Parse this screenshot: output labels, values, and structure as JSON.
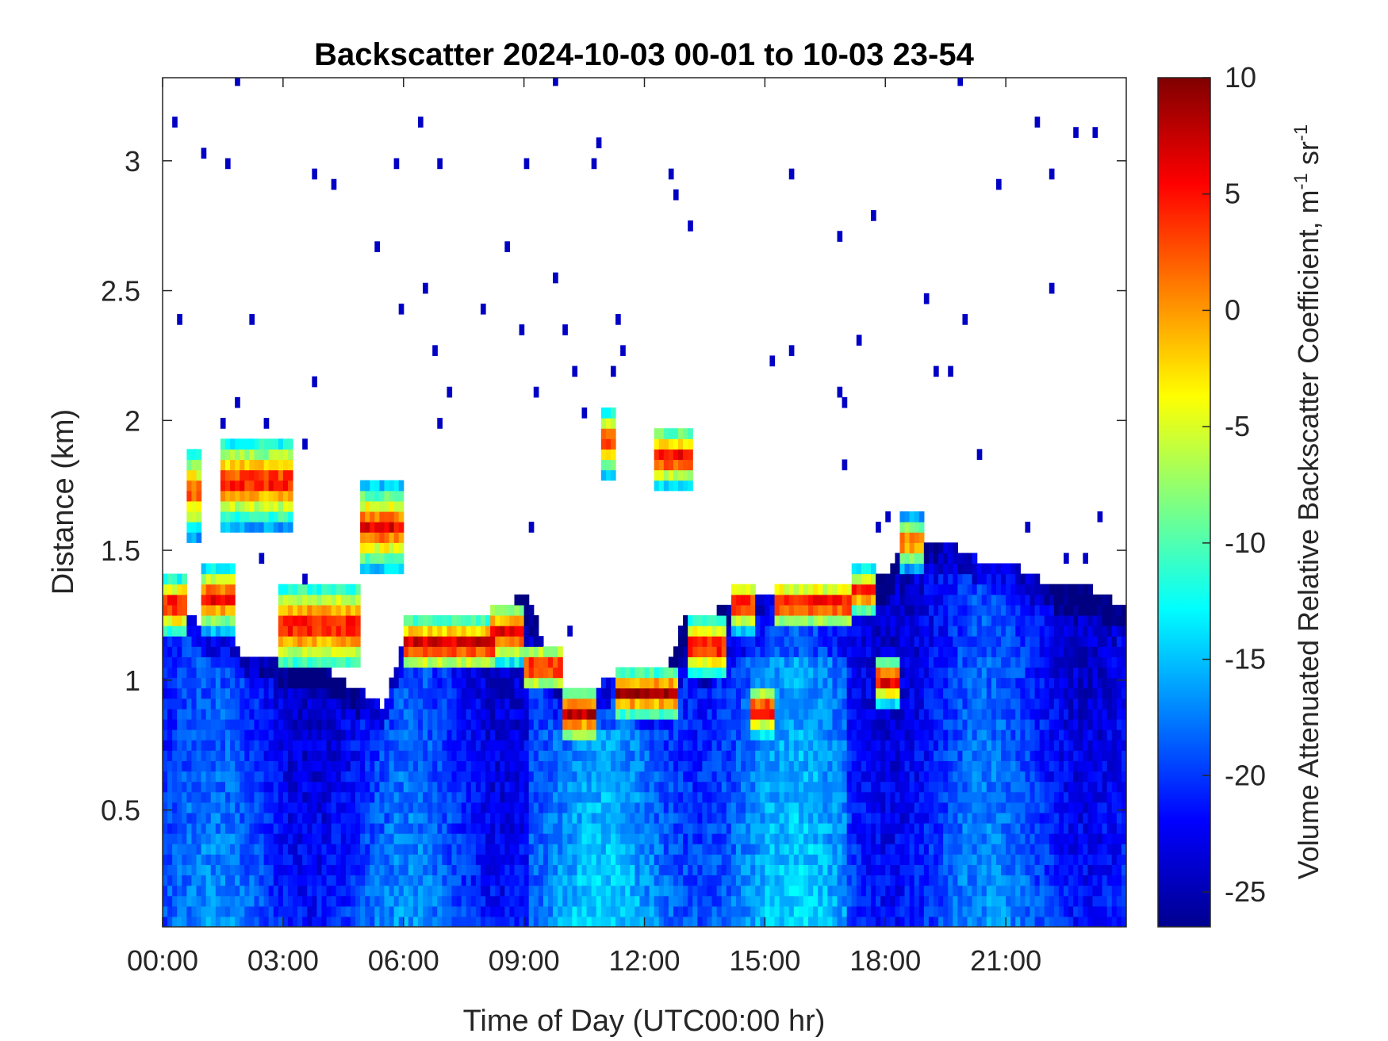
{
  "chart_data": {
    "type": "heatmap",
    "title": "Backscatter 2024-10-03 00-01 to 10-03 23-54",
    "xlabel": "Time of Day (UTC00:00 hr)",
    "ylabel": "Distance (km)",
    "xlim": [
      0,
      24
    ],
    "ylim": [
      0.05,
      3.32
    ],
    "x_ticks": [
      0,
      3,
      6,
      9,
      12,
      15,
      18,
      21
    ],
    "x_tick_labels": [
      "00:00",
      "03:00",
      "06:00",
      "09:00",
      "12:00",
      "15:00",
      "18:00",
      "21:00"
    ],
    "y_ticks": [
      0.5,
      1,
      1.5,
      2,
      2.5,
      3
    ],
    "y_tick_labels": [
      "0.5",
      "1",
      "1.5",
      "2",
      "2.5",
      "3"
    ],
    "colorbar": {
      "label": "Volume Attenuated Relative Backscatter Coefficient, m",
      "label_sup1": "-1",
      "label_mid": " sr",
      "label_sup2": "-1",
      "colormap": "jet",
      "clim": [
        -26.5,
        10
      ],
      "ticks": [
        10,
        5,
        0,
        -5,
        -10,
        -15,
        -20,
        -25
      ],
      "tick_labels": [
        "10",
        "5",
        "0",
        "-5",
        "-10",
        "-15",
        "-20",
        "-25"
      ]
    },
    "layer_top_km": [
      [
        0,
        1.28
      ],
      [
        0.5,
        1.3
      ],
      [
        1,
        1.2
      ],
      [
        1.5,
        1.2
      ],
      [
        2,
        1.1
      ],
      [
        2.5,
        1.1
      ],
      [
        3,
        1.08
      ],
      [
        3.5,
        1.08
      ],
      [
        4,
        1.06
      ],
      [
        4.5,
        1.0
      ],
      [
        5,
        0.95
      ],
      [
        5.5,
        0.9
      ],
      [
        6,
        1.15
      ],
      [
        6.5,
        1.2
      ],
      [
        7,
        1.22
      ],
      [
        7.5,
        1.22
      ],
      [
        8,
        1.25
      ],
      [
        8.5,
        1.28
      ],
      [
        9,
        1.35
      ],
      [
        9.5,
        1.15
      ],
      [
        10,
        0.95
      ],
      [
        10.5,
        0.95
      ],
      [
        11,
        1.0
      ],
      [
        11.5,
        1.05
      ],
      [
        12,
        1.0
      ],
      [
        12.5,
        1.0
      ],
      [
        13,
        1.25
      ],
      [
        13.5,
        1.2
      ],
      [
        14,
        1.3
      ],
      [
        14.5,
        1.35
      ],
      [
        15,
        1.35
      ],
      [
        15.5,
        1.35
      ],
      [
        16,
        1.35
      ],
      [
        16.5,
        1.35
      ],
      [
        17,
        1.35
      ],
      [
        17.5,
        1.4
      ],
      [
        18,
        1.4
      ],
      [
        18.5,
        1.58
      ],
      [
        19,
        1.55
      ],
      [
        19.5,
        1.52
      ],
      [
        20,
        1.5
      ],
      [
        20.5,
        1.45
      ],
      [
        21,
        1.45
      ],
      [
        21.5,
        1.42
      ],
      [
        22,
        1.38
      ],
      [
        22.5,
        1.36
      ],
      [
        23,
        1.36
      ],
      [
        23.5,
        1.32
      ],
      [
        24,
        1.28
      ]
    ],
    "cloud_layers": [
      {
        "t_start": 0.0,
        "t_end": 0.6,
        "base_km": 1.24,
        "top_km": 1.34,
        "peak_value": 8
      },
      {
        "t_start": 0.6,
        "t_end": 1.0,
        "base_km": 1.6,
        "top_km": 1.85,
        "peak_value": 4
      },
      {
        "t_start": 1.0,
        "t_end": 1.8,
        "base_km": 1.25,
        "top_km": 1.38,
        "peak_value": 7
      },
      {
        "t_start": 1.5,
        "t_end": 3.2,
        "base_km": 1.65,
        "top_km": 1.88,
        "peak_value": 6
      },
      {
        "t_start": 2.9,
        "t_end": 4.9,
        "base_km": 1.1,
        "top_km": 1.32,
        "peak_value": 7
      },
      {
        "t_start": 4.9,
        "t_end": 6.0,
        "base_km": 1.48,
        "top_km": 1.7,
        "peak_value": 6
      },
      {
        "t_start": 6.0,
        "t_end": 8.3,
        "base_km": 1.1,
        "top_km": 1.18,
        "peak_value": 9
      },
      {
        "t_start": 8.2,
        "t_end": 9.0,
        "base_km": 1.12,
        "top_km": 1.25,
        "peak_value": 7
      },
      {
        "t_start": 9.0,
        "t_end": 10.0,
        "base_km": 1.02,
        "top_km": 1.08,
        "peak_value": 8
      },
      {
        "t_start": 10.0,
        "t_end": 10.8,
        "base_km": 0.82,
        "top_km": 0.92,
        "peak_value": 8
      },
      {
        "t_start": 10.9,
        "t_end": 11.3,
        "base_km": 1.85,
        "top_km": 2.0,
        "peak_value": 6
      },
      {
        "t_start": 11.3,
        "t_end": 12.8,
        "base_km": 0.92,
        "top_km": 0.98,
        "peak_value": 9
      },
      {
        "t_start": 12.2,
        "t_end": 13.2,
        "base_km": 1.8,
        "top_km": 1.92,
        "peak_value": 7
      },
      {
        "t_start": 13.1,
        "t_end": 14.0,
        "base_km": 1.08,
        "top_km": 1.18,
        "peak_value": 8
      },
      {
        "t_start": 14.2,
        "t_end": 14.8,
        "base_km": 1.25,
        "top_km": 1.33,
        "peak_value": 8
      },
      {
        "t_start": 14.6,
        "t_end": 15.2,
        "base_km": 0.85,
        "top_km": 0.92,
        "peak_value": 8
      },
      {
        "t_start": 15.2,
        "t_end": 17.2,
        "base_km": 1.26,
        "top_km": 1.33,
        "peak_value": 8
      },
      {
        "t_start": 17.1,
        "t_end": 17.8,
        "base_km": 1.3,
        "top_km": 1.38,
        "peak_value": 6
      },
      {
        "t_start": 17.8,
        "t_end": 18.3,
        "base_km": 0.97,
        "top_km": 1.03,
        "peak_value": 8
      },
      {
        "t_start": 18.4,
        "t_end": 19.0,
        "base_km": 1.48,
        "top_km": 1.58,
        "peak_value": 4
      }
    ]
  }
}
